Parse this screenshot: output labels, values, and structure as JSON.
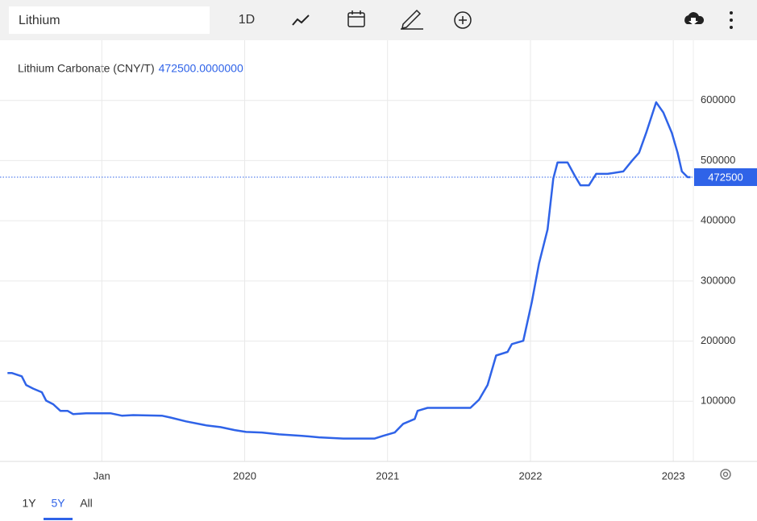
{
  "search": "Lithium",
  "toolbar": {
    "interval": "1D"
  },
  "ranges": [
    "1Y",
    "5Y",
    "All"
  ],
  "active_range": 1,
  "chart_data": {
    "type": "line",
    "title": "Lithium Carbonate (CNY/T)",
    "current": {
      "value": 472500,
      "label": "472500.0000000"
    },
    "color": "#2f63e8",
    "x": [
      2018.34,
      2018.37,
      2018.44,
      2018.47,
      2018.52,
      2018.58,
      2018.61,
      2018.66,
      2018.71,
      2018.76,
      2018.8,
      2018.89,
      2019.06,
      2019.14,
      2019.22,
      2019.42,
      2019.48,
      2019.59,
      2019.73,
      2019.83,
      2019.93,
      2020.01,
      2020.12,
      2020.24,
      2020.4,
      2020.52,
      2020.69,
      2020.91,
      2020.97,
      2021.05,
      2021.11,
      2021.19,
      2021.21,
      2021.28,
      2021.58,
      2021.64,
      2021.7,
      2021.76,
      2021.84,
      2021.87,
      2021.95,
      2022.01,
      2022.06,
      2022.12,
      2022.16,
      2022.19,
      2022.26,
      2022.31,
      2022.35,
      2022.41,
      2022.46,
      2022.54,
      2022.65,
      2022.71,
      2022.76,
      2022.81,
      2022.88,
      2022.93,
      2022.99,
      2023.03,
      2023.06,
      2023.1,
      2023.12
    ],
    "values": [
      147000,
      147000,
      141500,
      127000,
      121000,
      115000,
      101000,
      95000,
      84000,
      84000,
      78500,
      80000,
      80000,
      76000,
      77000,
      76000,
      73000,
      66500,
      60000,
      57000,
      52000,
      49000,
      48000,
      45000,
      42500,
      40000,
      38000,
      38000,
      42500,
      48000,
      62500,
      70500,
      84000,
      89000,
      89000,
      102500,
      127000,
      176000,
      182000,
      195000,
      200500,
      265000,
      329000,
      385500,
      470000,
      497000,
      497000,
      475000,
      459000,
      459000,
      478000,
      478000,
      482000,
      499500,
      513000,
      546000,
      597000,
      580000,
      546000,
      513000,
      482000,
      472500,
      472500
    ],
    "xlim": [
      2018.31,
      2023.14
    ],
    "xticks": [
      {
        "value": 2019,
        "label": "Jan"
      },
      2020,
      2021,
      2022,
      2023
    ],
    "ylim": [
      0,
      700000
    ],
    "yticks": [
      100000,
      200000,
      300000,
      400000,
      500000,
      600000
    ],
    "grid": true
  }
}
